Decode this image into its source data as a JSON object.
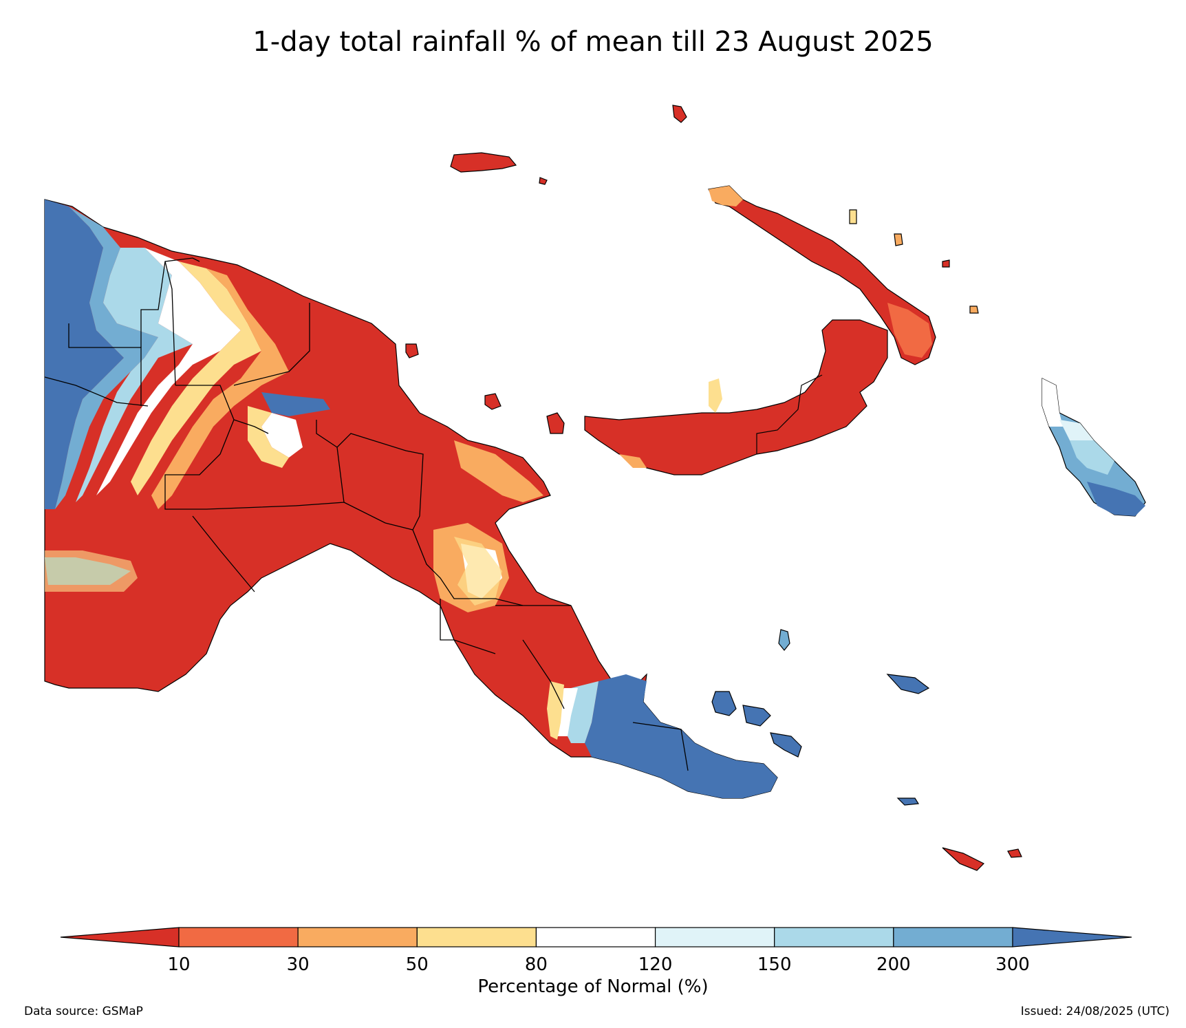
{
  "title": "1-day total rainfall % of mean till 23 August 2025",
  "legend": {
    "label": "Percentage of Normal (%)",
    "ticks": [
      "10",
      "30",
      "50",
      "80",
      "120",
      "150",
      "200",
      "300"
    ],
    "colors": [
      "#d73027",
      "#f16a43",
      "#f9ab60",
      "#fddf8f",
      "#ffffff",
      "#e0f3f8",
      "#abd9e9",
      "#73add2",
      "#4574b3"
    ],
    "extend": "both"
  },
  "footer": {
    "source": "Data source: GSMaP",
    "issued": "Issued: 24/08/2025 (UTC)"
  },
  "map_colors": {
    "very_dry": "#d73027",
    "dry": "#f16a43",
    "mod_dry": "#f9ab60",
    "slight_dry": "#fddf8f",
    "normal": "#ffffff",
    "slight_wet": "#e0f3f8",
    "mod_wet": "#abd9e9",
    "wet": "#73add2",
    "very_wet": "#4574b3",
    "border": "#000000"
  }
}
